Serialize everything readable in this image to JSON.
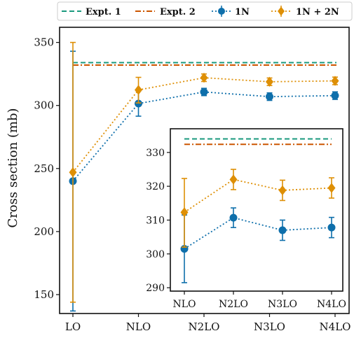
{
  "chart_data": [
    {
      "type": "line",
      "panel": "main",
      "title": "",
      "xlabel": "",
      "ylabel": "Cross section (mb)",
      "categories": [
        "LO",
        "NLO",
        "N2LO",
        "N3LO",
        "N4LO"
      ],
      "ylim": [
        135,
        362
      ],
      "yticks": [
        150,
        200,
        250,
        300,
        350
      ],
      "grid": false,
      "legend_position": "top, outside",
      "reference_lines": [
        {
          "name": "Expt. 1",
          "value": 334,
          "style": "dashed",
          "color": "#1a9a7e"
        },
        {
          "name": "Expt. 2",
          "value": 332,
          "style": "dash-dot",
          "color": "#cc5500"
        }
      ],
      "series": [
        {
          "name": "1N",
          "color": "#0e6fab",
          "marker": "circle",
          "values": [
            240,
            301.5,
            310.7,
            307,
            307.8
          ],
          "err_low": [
            137,
            291.5,
            307.8,
            304,
            304.8
          ],
          "err_high": [
            343,
            311.5,
            313.6,
            310,
            310.8
          ]
        },
        {
          "name": "1N + 2N",
          "color": "#de8f05",
          "marker": "diamond",
          "values": [
            247,
            312.3,
            322,
            318.8,
            319.5
          ],
          "err_low": [
            144,
            302,
            319,
            315.8,
            316.5
          ],
          "err_high": [
            350,
            322.3,
            325,
            321.8,
            322.5
          ]
        }
      ]
    },
    {
      "type": "line",
      "panel": "inset",
      "categories": [
        "NLO",
        "N2LO",
        "N3LO",
        "N4LO"
      ],
      "ylim": [
        289,
        337
      ],
      "yticks": [
        290,
        300,
        310,
        320,
        330
      ],
      "reference_lines": [
        {
          "name": "Expt. 1",
          "value": 334,
          "style": "dashed",
          "color": "#1a9a7e"
        },
        {
          "name": "Expt. 2",
          "value": 332.4,
          "style": "dash-dot",
          "color": "#cc5500"
        }
      ],
      "series": [
        {
          "name": "1N",
          "color": "#0e6fab",
          "marker": "circle",
          "values": [
            301.5,
            310.7,
            307,
            307.8
          ],
          "err_low": [
            291.5,
            307.8,
            304,
            304.8
          ],
          "err_high": [
            311.5,
            313.6,
            310,
            310.8
          ]
        },
        {
          "name": "1N + 2N",
          "color": "#de8f05",
          "marker": "diamond",
          "values": [
            312.3,
            322,
            318.8,
            319.5
          ],
          "err_low": [
            302,
            319,
            315.8,
            316.5
          ],
          "err_high": [
            322.3,
            325,
            321.8,
            322.5
          ]
        }
      ]
    }
  ],
  "legend": {
    "items": [
      "Expt. 1",
      "Expt. 2",
      "1N",
      "1N + 2N"
    ]
  }
}
